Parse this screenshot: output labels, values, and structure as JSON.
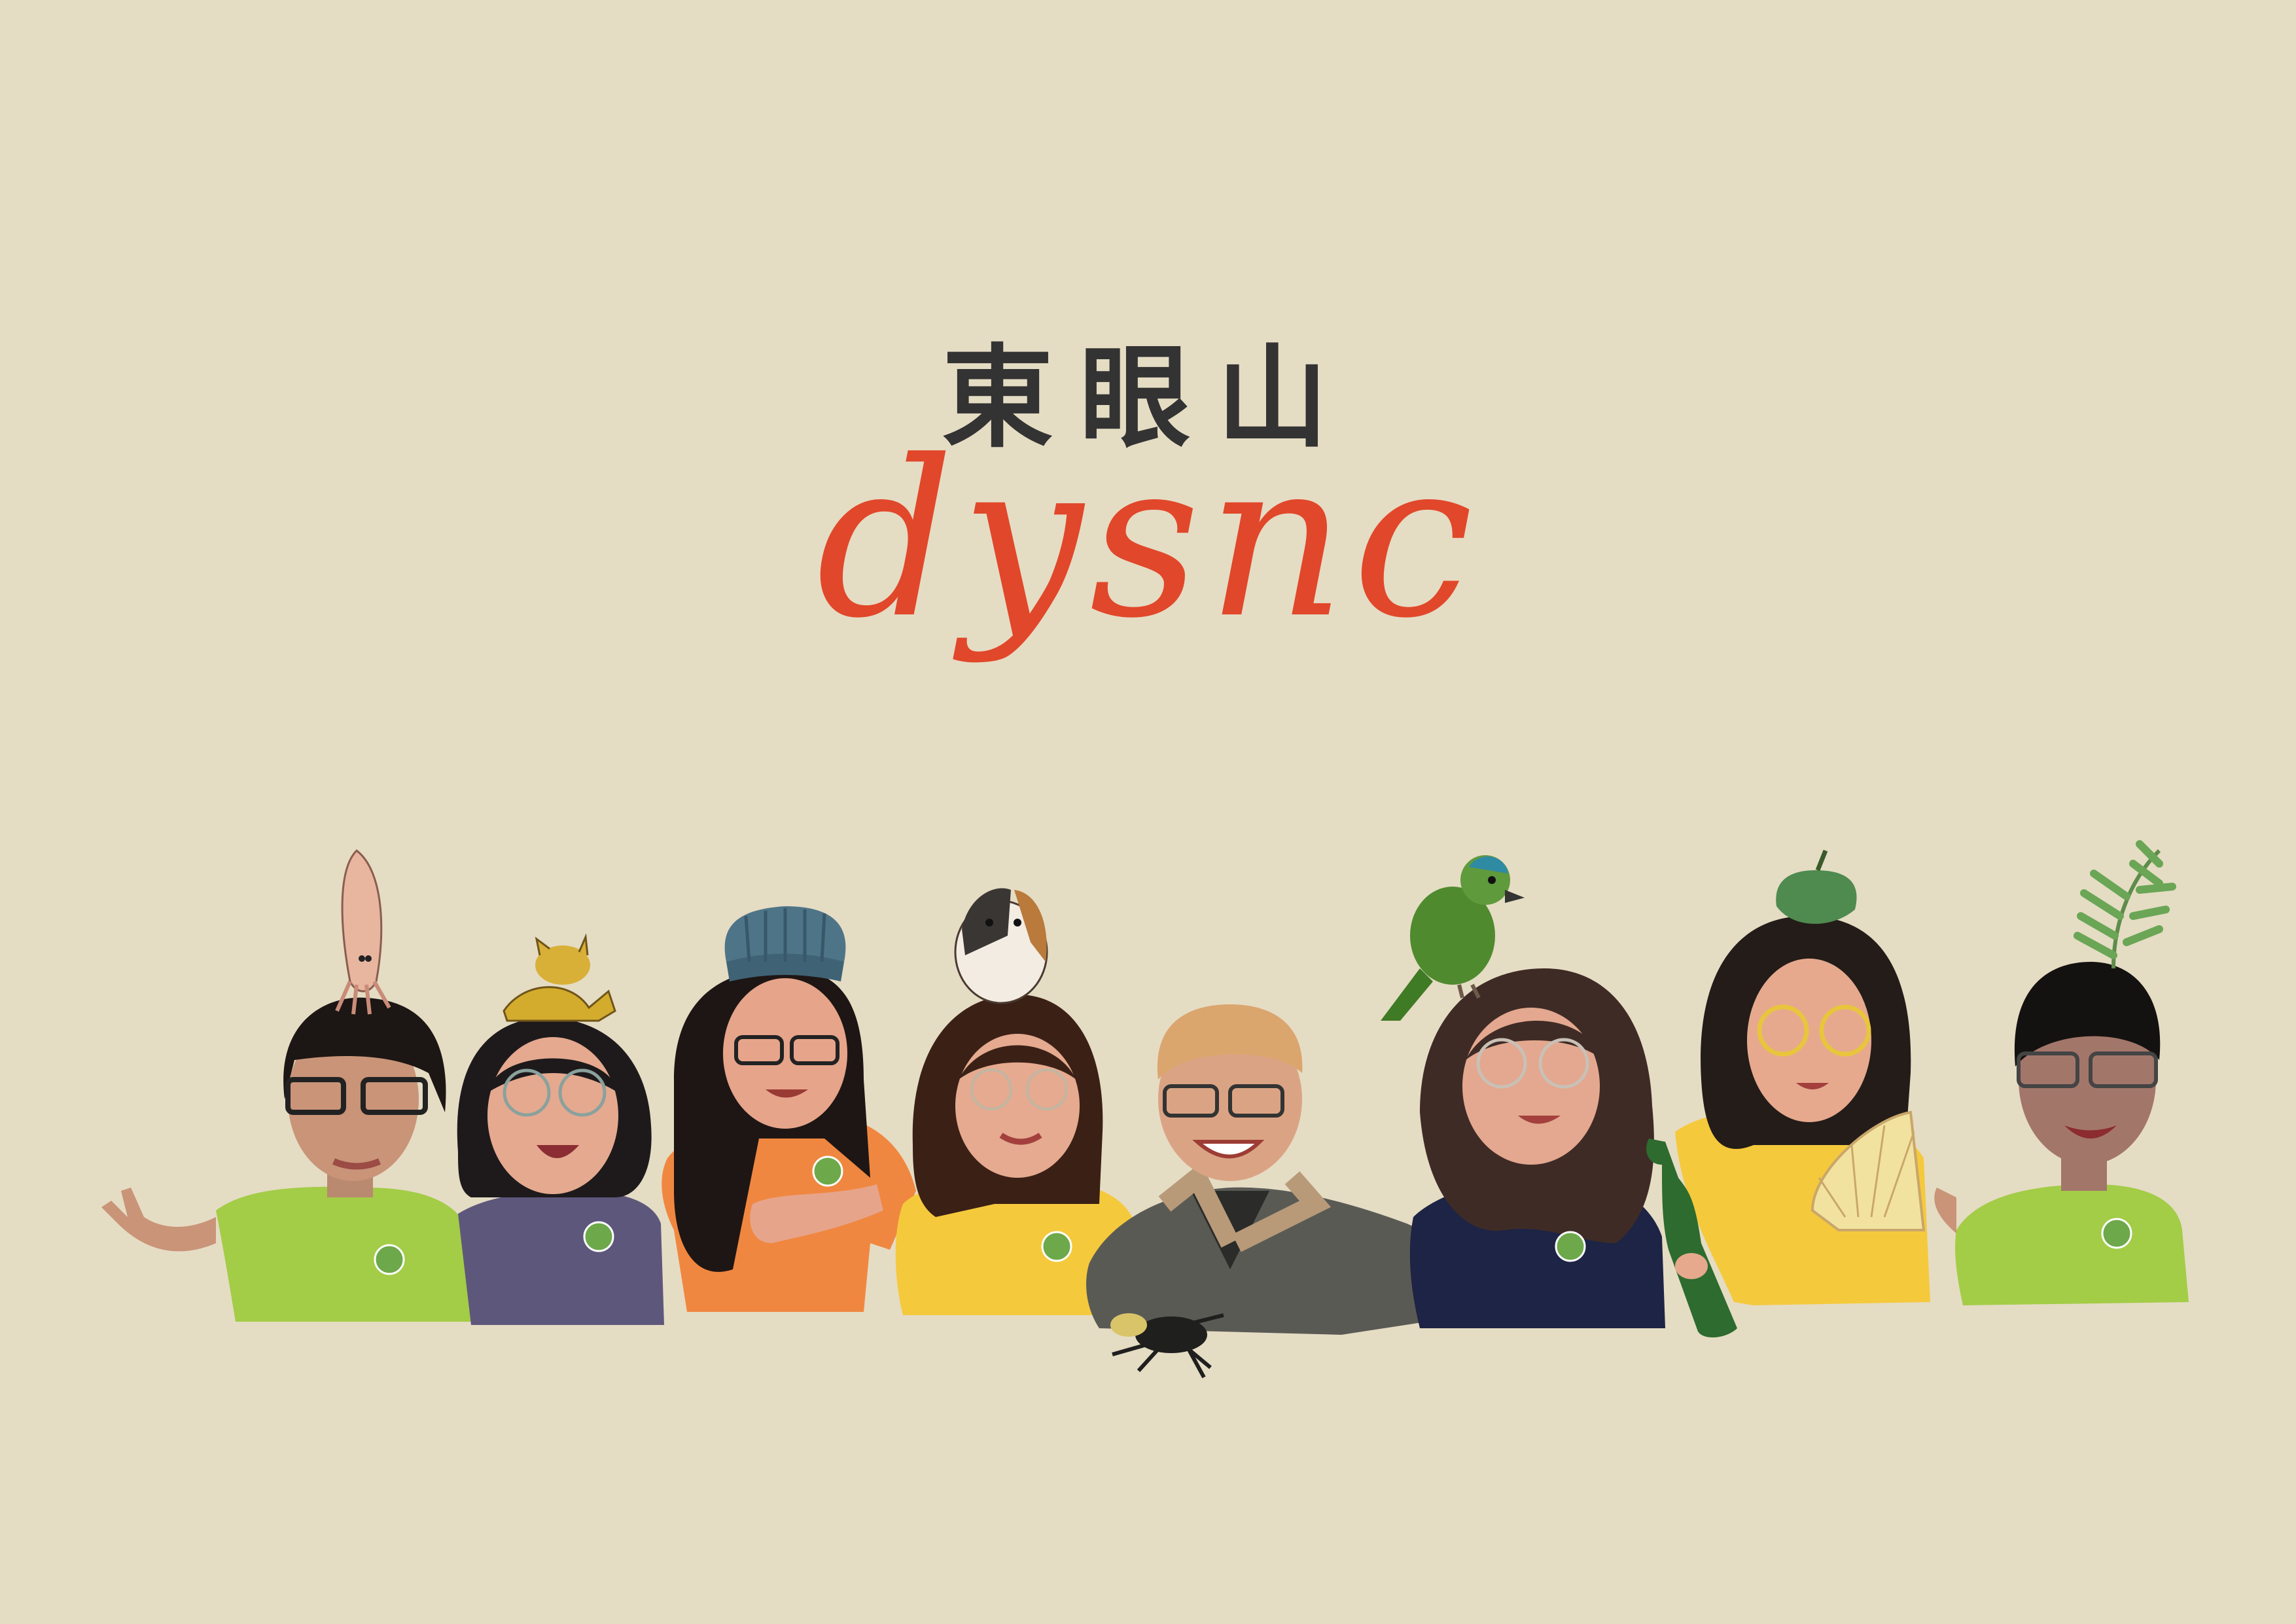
{
  "header": {
    "title_zh": "東眼山",
    "title_en": "dysnc"
  },
  "colors": {
    "background": "#e5dcc4",
    "title_zh": "#333333",
    "title_en": "#e1472a",
    "skin": "#d9a084",
    "hair": "#2a1e1a",
    "shirt_green": "#a3cc47",
    "shirt_purple": "#5e577c",
    "shirt_orange": "#f08740",
    "shirt_yellow": "#f5c93c",
    "jacket_gray": "#5a5a55",
    "shirt_navy": "#1d2445",
    "bottle_green": "#2d6b2e"
  },
  "illustration": {
    "people": [
      {
        "shirt": "green",
        "head_item": "squid-icon"
      },
      {
        "shirt": "purple",
        "head_item": "pokemon-creature-icon"
      },
      {
        "shirt": "orange",
        "head_item": "chef-hat-icon"
      },
      {
        "shirt": "yellow",
        "head_item": "guinea-pig-icon"
      },
      {
        "shirt": "gray-jacket",
        "head_item": "none",
        "foreground_item": "beetle-icon"
      },
      {
        "shirt": "navy",
        "head_item": "barbet-bird-icon"
      },
      {
        "shirt": "yellow",
        "head_item": "green-fruit-icon",
        "held_items": [
          "bottle-icon",
          "fan-icon"
        ]
      },
      {
        "shirt": "green",
        "head_item": "plant-sprig-icon"
      }
    ]
  }
}
